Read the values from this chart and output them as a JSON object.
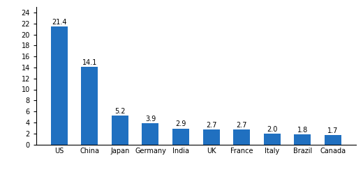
{
  "categories": [
    "US",
    "China",
    "Japan",
    "Germany",
    "India",
    "UK",
    "France",
    "Italy",
    "Brazil",
    "Canada"
  ],
  "values": [
    21.4,
    14.1,
    5.2,
    3.9,
    2.9,
    2.7,
    2.7,
    2.0,
    1.8,
    1.7
  ],
  "bar_color": "#2070c0",
  "ylim": [
    0,
    25
  ],
  "yticks": [
    0,
    2,
    4,
    6,
    8,
    10,
    12,
    14,
    16,
    18,
    20,
    22,
    24
  ],
  "label_fontsize": 7.0,
  "tick_fontsize": 7.0,
  "ylabel_fontsize": 7.0,
  "bar_width": 0.55,
  "background_color": "#ffffff"
}
